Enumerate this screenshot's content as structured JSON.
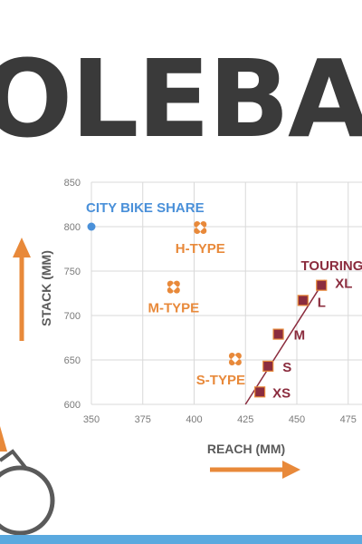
{
  "banner": {
    "text": "OLEBAR"
  },
  "chart_data": {
    "type": "scatter",
    "xlabel": "REACH (MM)",
    "ylabel": "STACK (MM)",
    "xlim": [
      350,
      485
    ],
    "ylim": [
      600,
      850
    ],
    "x_ticks": [
      "350",
      "375",
      "400",
      "425",
      "450",
      "475"
    ],
    "y_ticks": [
      "600",
      "650",
      "700",
      "750",
      "800",
      "850"
    ],
    "grid": true,
    "points": [
      {
        "label": "CITY BIKE SHARE",
        "x": 350,
        "y": 800,
        "marker": "circle",
        "color": "#4a90d9"
      },
      {
        "label": "H-TYPE",
        "x": 403,
        "y": 799,
        "marker": "cross",
        "color": "#e8893a"
      },
      {
        "label": "M-TYPE",
        "x": 390,
        "y": 732,
        "marker": "cross",
        "color": "#e8893a"
      },
      {
        "label": "S-TYPE",
        "x": 420,
        "y": 651,
        "marker": "cross",
        "color": "#e8893a"
      }
    ],
    "series": [
      {
        "name": "TOURING B",
        "color": "#8b2c3e",
        "marker": "square",
        "points": [
          {
            "label": "XS",
            "x": 432,
            "y": 614
          },
          {
            "label": "S",
            "x": 436,
            "y": 643
          },
          {
            "label": "M",
            "x": 441,
            "y": 679
          },
          {
            "label": "L",
            "x": 453,
            "y": 717
          },
          {
            "label": "XL",
            "x": 462,
            "y": 734
          }
        ]
      }
    ]
  },
  "colors": {
    "orange": "#e8893a",
    "blue": "#4a90d9",
    "maroon": "#8b2c3e",
    "accent_bar": "#5aa9df"
  }
}
